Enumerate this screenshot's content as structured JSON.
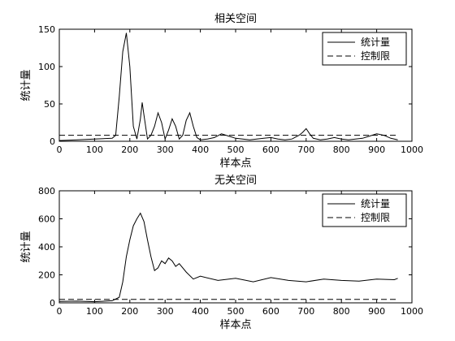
{
  "figure_background": "#ffffff",
  "line_color": "#000000",
  "chart_data": [
    {
      "type": "line",
      "title": "相关空间",
      "xlabel": "样本点",
      "ylabel": "统计量",
      "xlim": [
        0,
        1000
      ],
      "ylim": [
        0,
        150
      ],
      "xticks": [
        0,
        100,
        200,
        300,
        400,
        500,
        600,
        700,
        800,
        900,
        1000
      ],
      "yticks": [
        0,
        50,
        100,
        150
      ],
      "grid": false,
      "legend_position": "top-right",
      "series": [
        {
          "name": "统计量",
          "style": "solid",
          "x": [
            0,
            50,
            100,
            150,
            160,
            170,
            180,
            190,
            200,
            210,
            220,
            230,
            235,
            240,
            250,
            260,
            270,
            280,
            290,
            300,
            310,
            320,
            330,
            340,
            350,
            360,
            370,
            380,
            390,
            400,
            420,
            440,
            460,
            480,
            500,
            520,
            540,
            560,
            580,
            600,
            620,
            640,
            660,
            680,
            690,
            700,
            710,
            720,
            740,
            760,
            780,
            800,
            820,
            840,
            860,
            880,
            900,
            920,
            940,
            960
          ],
          "y": [
            1,
            2,
            3,
            4,
            8,
            60,
            120,
            145,
            100,
            20,
            3,
            30,
            52,
            35,
            3,
            8,
            20,
            38,
            25,
            3,
            15,
            30,
            20,
            3,
            8,
            28,
            38,
            20,
            5,
            2,
            3,
            5,
            10,
            7,
            4,
            3,
            2,
            3,
            4,
            5,
            3,
            2,
            3,
            8,
            12,
            17,
            10,
            4,
            2,
            3,
            5,
            3,
            2,
            3,
            4,
            7,
            10,
            8,
            4,
            2
          ]
        },
        {
          "name": "控制限",
          "style": "dashed",
          "x": [
            0,
            960
          ],
          "y": [
            8,
            8
          ]
        }
      ]
    },
    {
      "type": "line",
      "title": "无关空间",
      "xlabel": "样本点",
      "ylabel": "统计量",
      "xlim": [
        0,
        1000
      ],
      "ylim": [
        0,
        800
      ],
      "xticks": [
        0,
        100,
        200,
        300,
        400,
        500,
        600,
        700,
        800,
        900,
        1000
      ],
      "yticks": [
        0,
        200,
        400,
        600,
        800
      ],
      "grid": false,
      "legend_position": "top-right",
      "series": [
        {
          "name": "统计量",
          "style": "solid",
          "x": [
            0,
            50,
            100,
            150,
            170,
            180,
            190,
            200,
            210,
            220,
            230,
            240,
            250,
            260,
            270,
            280,
            290,
            300,
            310,
            320,
            330,
            340,
            360,
            380,
            400,
            450,
            500,
            550,
            600,
            650,
            700,
            750,
            800,
            850,
            900,
            950,
            960
          ],
          "y": [
            10,
            12,
            8,
            15,
            40,
            150,
            330,
            450,
            550,
            600,
            640,
            580,
            450,
            330,
            230,
            250,
            300,
            280,
            320,
            300,
            260,
            280,
            220,
            170,
            190,
            160,
            175,
            150,
            180,
            160,
            150,
            170,
            160,
            155,
            170,
            165,
            175
          ]
        },
        {
          "name": "控制限",
          "style": "dashed",
          "x": [
            0,
            960
          ],
          "y": [
            25,
            25
          ]
        }
      ]
    }
  ]
}
